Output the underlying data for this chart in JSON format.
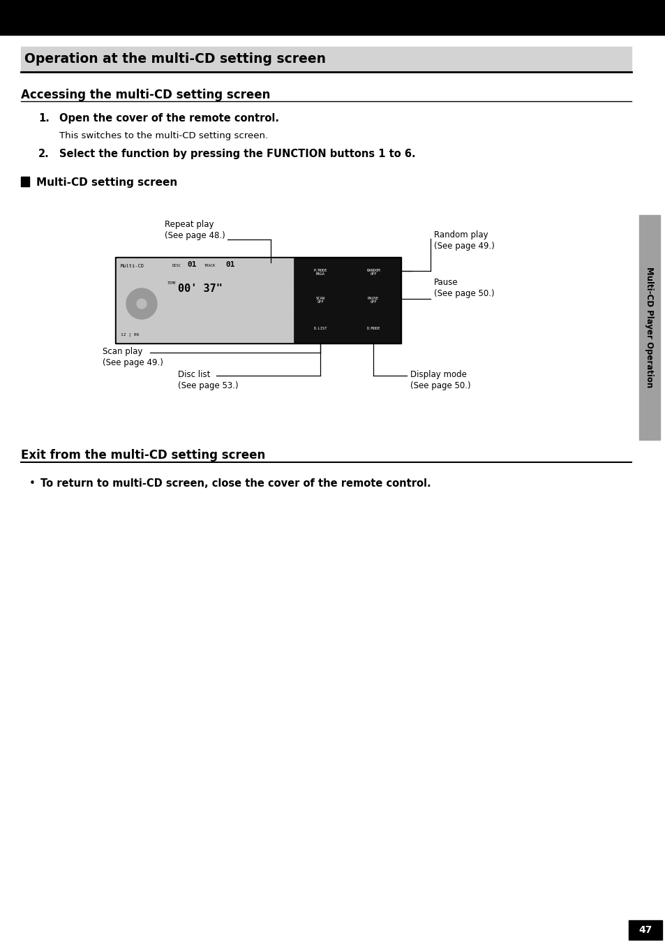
{
  "page_title": "Operation at the multi-CD setting screen",
  "section1_title": "Accessing the multi-CD setting screen",
  "step1_bold": "Open the cover of the remote control.",
  "step1_text": "This switches to the multi-CD setting screen.",
  "step2_bold": "Select the function by pressing the FUNCTION buttons 1 to 6.",
  "subsection_title": "Multi-CD setting screen",
  "exit_title": "Exit from the multi-CD setting screen",
  "exit_bullet": "To return to multi-CD screen, close the cover of the remote control.",
  "sidebar_text": "Multi-CD Player Operation",
  "page_number": "47",
  "top_bar_color": "#000000",
  "title_bg_color": "#d3d3d3",
  "sidebar_bg_color": "#a0a0a0"
}
